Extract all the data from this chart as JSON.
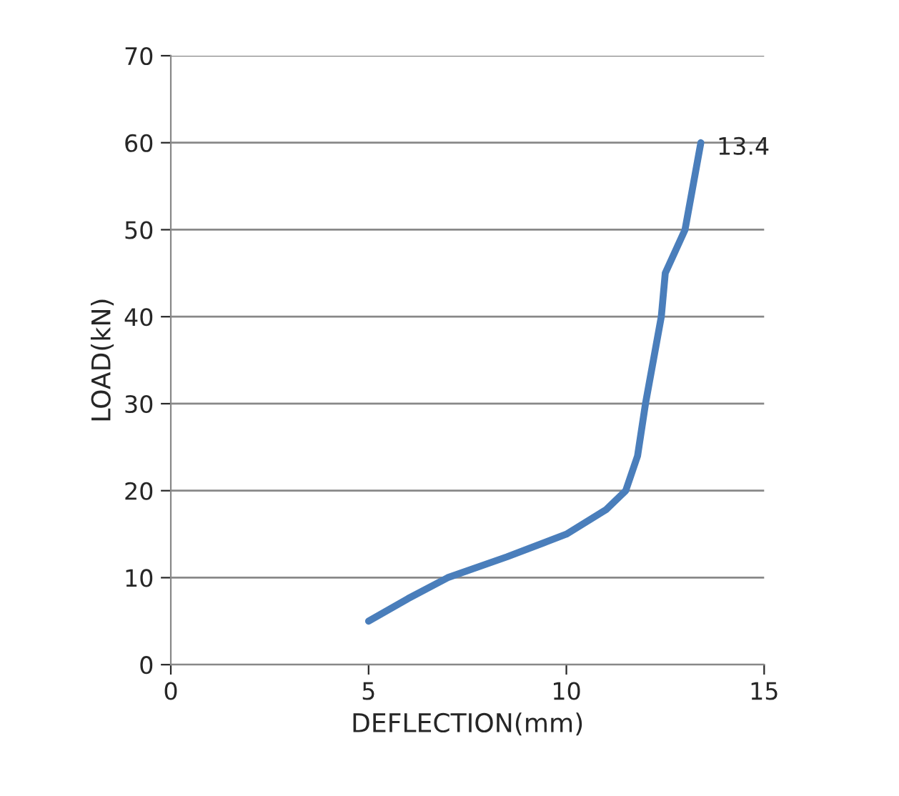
{
  "chart_data": {
    "type": "line",
    "xlabel": "DEFLECTION(mm)",
    "ylabel": "LOAD(kN)",
    "x": [
      5,
      6,
      7,
      8.5,
      10,
      11,
      11.5,
      11.8,
      12,
      12.2,
      12.4,
      12.5,
      13,
      13.4
    ],
    "series": [
      {
        "color": "#4a7ebb",
        "values": [
          5,
          7.6,
          10,
          12.4,
          15,
          17.8,
          20,
          24,
          30,
          35,
          40,
          45,
          50,
          60
        ]
      }
    ],
    "xlim": [
      0,
      15
    ],
    "xticks": [
      0,
      5,
      10,
      15
    ],
    "ylim": [
      0,
      70
    ],
    "yticks": [
      0,
      10,
      20,
      30,
      40,
      50,
      60,
      70
    ],
    "grid": "y",
    "marker": "none",
    "line_style": "solid",
    "annotations": [
      {
        "text": "13.4",
        "x": 13.4,
        "y": 60
      }
    ]
  }
}
